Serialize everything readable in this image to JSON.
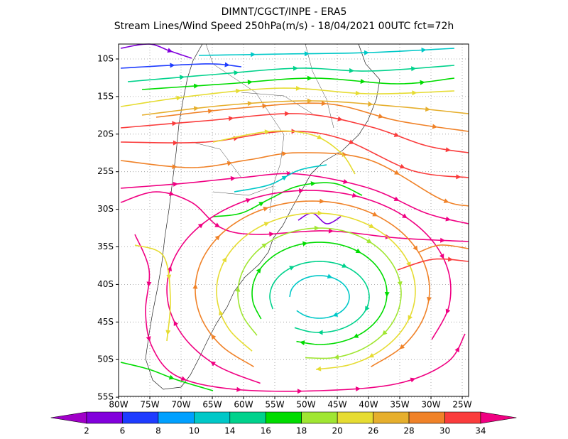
{
  "title": "DIMNT/CGCT/INPE  -  ERA5",
  "subtitle": "Stream Lines/Wind Speed 250hPa(m/s)  -  18/04/2021 00UTC fct=72h",
  "map": {
    "lat_labels": [
      "10S",
      "15S",
      "20S",
      "25S",
      "30S",
      "35S",
      "40S",
      "45S",
      "50S",
      "55S"
    ],
    "lon_labels": [
      "80W",
      "75W",
      "70W",
      "65W",
      "60W",
      "55W",
      "50W",
      "45W",
      "40W",
      "35W",
      "30W",
      "25W"
    ]
  },
  "colorbar": {
    "levels": [
      2,
      6,
      8,
      10,
      14,
      16,
      18,
      20,
      26,
      28,
      30,
      34
    ],
    "colors": [
      "#a000c8",
      "#8200dc",
      "#1e3cff",
      "#00a0ff",
      "#00c8c8",
      "#00d28c",
      "#00dc00",
      "#a0e632",
      "#e6dc32",
      "#e6af2d",
      "#f08228",
      "#fa3c3c",
      "#f00082"
    ]
  }
}
